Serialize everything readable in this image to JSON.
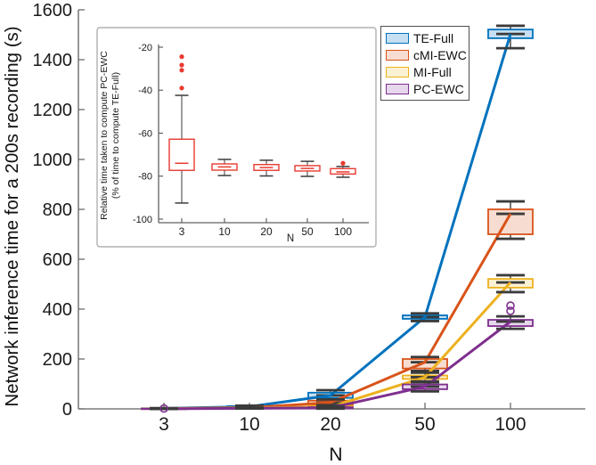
{
  "figure": {
    "background": "#ffffff",
    "axis_color": "#606060",
    "text_color": "#1a1a1a",
    "cap_color": "#3b3b3b"
  },
  "legend": {
    "items": [
      {
        "label": "TE-Full",
        "stroke": "#0072bd",
        "fill": "#c6dff2"
      },
      {
        "label": "cMI-EWC",
        "stroke": "#d95319",
        "fill": "#f7ddd1"
      },
      {
        "label": "MI-Full",
        "stroke": "#edb120",
        "fill": "#fbf1d3"
      },
      {
        "label": "PC-EWC",
        "stroke": "#7e2f8e",
        "fill": "#e6d7ed"
      }
    ]
  },
  "chart_data": [
    {
      "id": "main",
      "type": "boxplot+line",
      "xlabel": "N",
      "ylabel": "Network inference time for a 200s recording (s)",
      "categories": [
        "3",
        "10",
        "20",
        "50",
        "100"
      ],
      "yticks": [
        0,
        200,
        400,
        600,
        800,
        1000,
        1200,
        1400,
        1600
      ],
      "ylim": [
        0,
        1600
      ],
      "grid": false,
      "legend_position": "top-right-inside",
      "stats_format": [
        "whisker_low",
        "q1",
        "median",
        "q3",
        "whisker_high"
      ],
      "series": [
        {
          "name": "TE-Full",
          "color": "#0072bd",
          "fill": "#c6dff2",
          "medians": [
            2,
            9,
            54,
            368,
            1503
          ],
          "stats": [
            [
              1,
              1.5,
              2,
              2.5,
              3
            ],
            [
              5,
              7,
              9,
              11,
              13
            ],
            [
              35,
              44,
              54,
              65,
              75
            ],
            [
              352,
              361,
              368,
              375,
              383
            ],
            [
              1446,
              1486,
              1503,
              1521,
              1536
            ]
          ],
          "outliers": [
            [],
            [],
            [],
            [],
            []
          ]
        },
        {
          "name": "cMI-EWC",
          "color": "#d95319",
          "fill": "#f7ddd1",
          "medians": [
            1.2,
            5,
            25,
            187,
            782
          ],
          "stats": [
            [
              0.8,
              1,
              1.2,
              1.5,
              1.8
            ],
            [
              3,
              4,
              5,
              6,
              7
            ],
            [
              10,
              16,
              25,
              33,
              38
            ],
            [
              152,
              162,
              187,
              200,
              208
            ],
            [
              682,
              700,
              782,
              800,
              832
            ]
          ],
          "outliers": [
            [],
            [],
            [],
            [],
            []
          ]
        },
        {
          "name": "MI-Full",
          "color": "#edb120",
          "fill": "#fbf1d3",
          "medians": [
            0.8,
            3.5,
            8,
            127,
            507
          ],
          "stats": [
            [
              0.4,
              0.6,
              0.8,
              1,
              1.2
            ],
            [
              2,
              3,
              3.5,
              4.5,
              5
            ],
            [
              2,
              4,
              8,
              12,
              15
            ],
            [
              110,
              120,
              127,
              134,
              145
            ],
            [
              468,
              486,
              507,
              521,
              536
            ]
          ],
          "outliers": [
            [],
            [],
            [],
            [],
            []
          ]
        },
        {
          "name": "PC-EWC",
          "color": "#7e2f8e",
          "fill": "#e6d7ed",
          "medians": [
            0.5,
            2.5,
            4,
            89,
            350
          ],
          "stats": [
            [
              0.3,
              0.4,
              0.5,
              0.7,
              0.9
            ],
            [
              1.5,
              2,
              2.5,
              3,
              4
            ],
            [
              1,
              2,
              4,
              7,
              9
            ],
            [
              70,
              79,
              89,
              98,
              107
            ],
            [
              321,
              332,
              350,
              357,
              371
            ]
          ],
          "outliers": [
            [
              1.5
            ],
            [],
            [],
            [],
            [
              393,
              414
            ]
          ]
        }
      ]
    },
    {
      "id": "inset",
      "type": "boxplot",
      "xlabel": "N",
      "ylabel_line1": "Relative time taken to compute PC-EWC",
      "ylabel_line2": "(% of time to compute TE-Full)",
      "categories": [
        "3",
        "10",
        "20",
        "50",
        "100"
      ],
      "yticks": [
        -20,
        -40,
        -60,
        -80,
        -100
      ],
      "ylim": [
        -104,
        -16
      ],
      "grid": false,
      "series": [
        {
          "name": "PC-EWC relative time",
          "color": "#e8392f",
          "fill": "#ffffff",
          "medians": [
            -74,
            -75.7,
            -76,
            -76.4,
            -78
          ],
          "stats": [
            [
              -92.5,
              -77.3,
              -74,
              -62.8,
              -42.4
            ],
            [
              -79.7,
              -77.2,
              -75.7,
              -74.3,
              -72.2
            ],
            [
              -79.9,
              -77.3,
              -76,
              -74.6,
              -72.6
            ],
            [
              -80.1,
              -77.6,
              -76.4,
              -75.1,
              -73.1
            ],
            [
              -80.5,
              -79,
              -78,
              -76.5,
              -75.5
            ]
          ],
          "outliers": [
            [
              -39,
              -30.7,
              -28.3,
              -24.4
            ],
            [],
            [],
            [],
            [
              -74
            ]
          ]
        }
      ]
    }
  ]
}
